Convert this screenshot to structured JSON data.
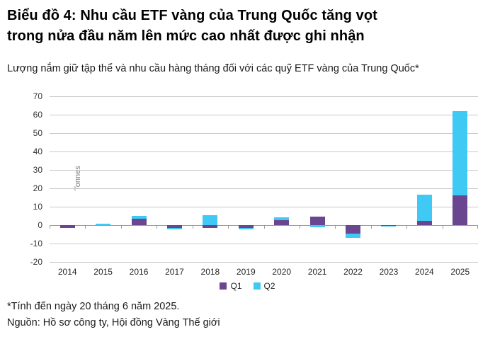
{
  "header": {
    "title": "Biểu đồ 4: Nhu cầu ETF vàng của Trung Quốc tăng vọt\ntrong nửa đầu năm lên mức cao nhất được ghi nhận",
    "subtitle": "Lượng nắm giữ tập thể và nhu cầu hàng tháng đối với các quỹ ETF vàng của Trung Quốc*"
  },
  "chart_data": {
    "type": "bar",
    "stacked": true,
    "ylabel": "Tonnes",
    "categories": [
      "2014",
      "2015",
      "2016",
      "2017",
      "2018",
      "2019",
      "2020",
      "2021",
      "2022",
      "2023",
      "2024",
      "2025"
    ],
    "series": [
      {
        "name": "Q1",
        "color": "#6b4690",
        "values": [
          -1.5,
          0,
          3.5,
          -1.5,
          -1.5,
          -1.4,
          2.8,
          4.5,
          -4.5,
          -0.2,
          2.3,
          16.3
        ]
      },
      {
        "name": "Q2",
        "color": "#3fc9f4",
        "values": [
          0,
          0.6,
          1.5,
          -0.8,
          5.2,
          -1.1,
          1.6,
          -1.2,
          -2.3,
          -0.4,
          14.2,
          45.7
        ]
      }
    ],
    "ylim": [
      -20,
      70
    ],
    "ytick_step": 10,
    "grid": true,
    "legend_position": "bottom",
    "colors": {
      "gridline": "#c9c9c9",
      "axis": "#9c9c9c"
    }
  },
  "footer": {
    "note": "*Tính đến ngày 20 tháng 6 năm 2025.",
    "source": "Nguồn: Hồ sơ công ty, Hội đồng Vàng Thế giới"
  }
}
